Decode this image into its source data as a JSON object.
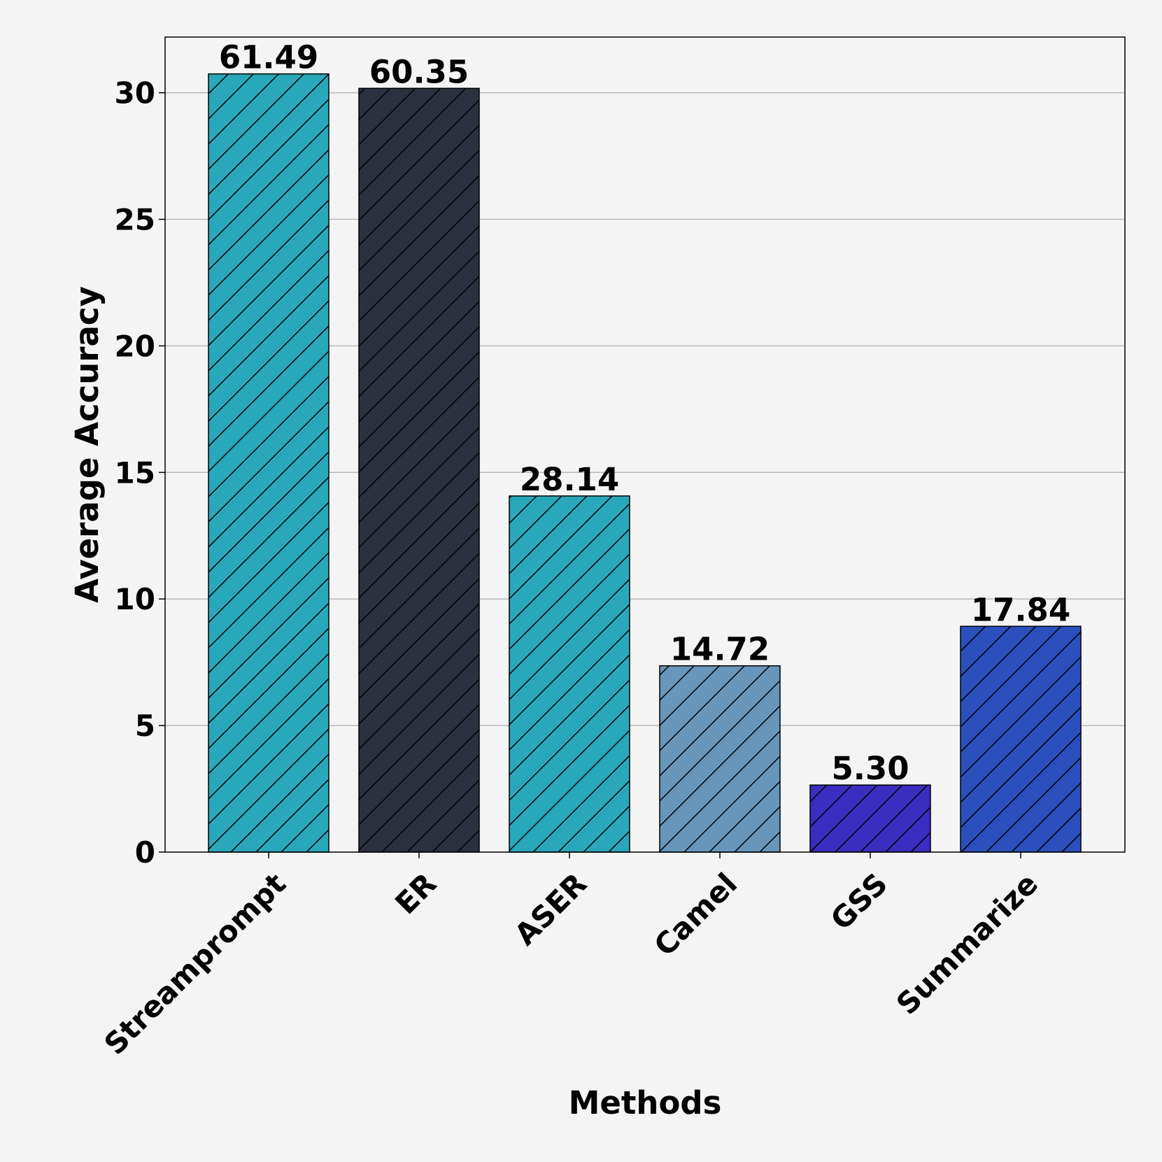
{
  "chart_data": {
    "type": "bar",
    "xlabel": "Methods",
    "ylabel": "Average Accuracy",
    "ylim": [
      0,
      32.2
    ],
    "yticks": [
      0,
      5,
      10,
      15,
      20,
      25,
      30
    ],
    "grid": "y",
    "hatch": "diagonal",
    "categories": [
      "Streamprompt",
      "ER",
      "ASER",
      "Camel",
      "GSS",
      "Summarize"
    ],
    "values": [
      30.745,
      30.175,
      14.07,
      7.36,
      2.65,
      8.92
    ],
    "labels": [
      "61.49",
      "60.35",
      "28.14",
      "14.72",
      "5.30",
      "17.84"
    ],
    "colors": [
      "#29a8bb",
      "#2c3140",
      "#29a8bb",
      "#6896bb",
      "#3a2dc0",
      "#2b4fbd"
    ]
  }
}
